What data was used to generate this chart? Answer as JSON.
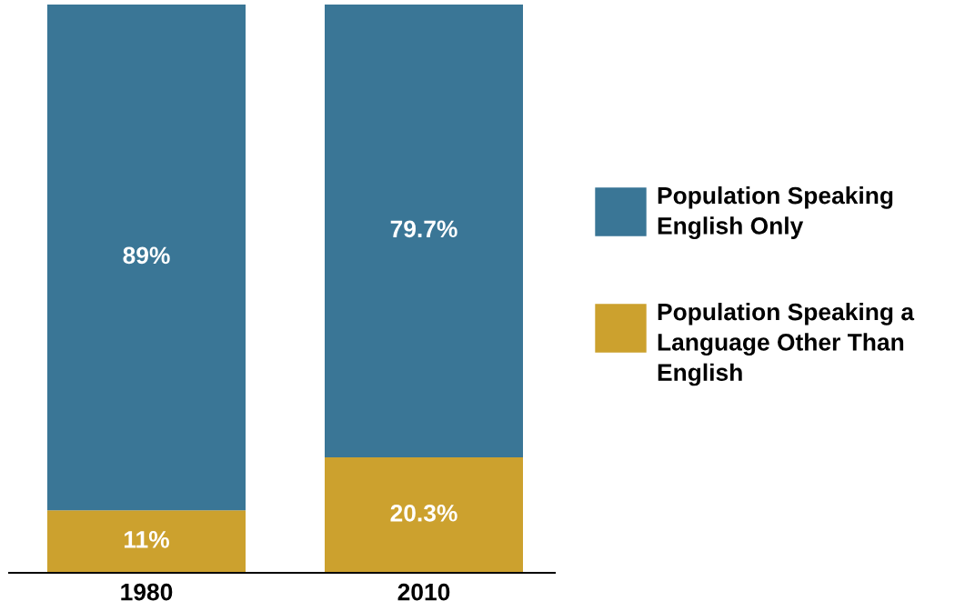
{
  "chart_data": {
    "type": "bar",
    "stacked": true,
    "categories": [
      "1980",
      "2010"
    ],
    "series": [
      {
        "name": "Population Speaking a Language Other Than English",
        "color": "#cca12e",
        "values": [
          11,
          20.3
        ],
        "value_labels": [
          "11%",
          "20.3%"
        ]
      },
      {
        "name": "Population Speaking English Only",
        "color": "#3a7696",
        "values": [
          89,
          79.7
        ],
        "value_labels": [
          "89%",
          "79.7%"
        ]
      }
    ],
    "ylim": [
      0,
      100
    ],
    "tick_labels": "x",
    "grid": false,
    "legend": "right"
  }
}
